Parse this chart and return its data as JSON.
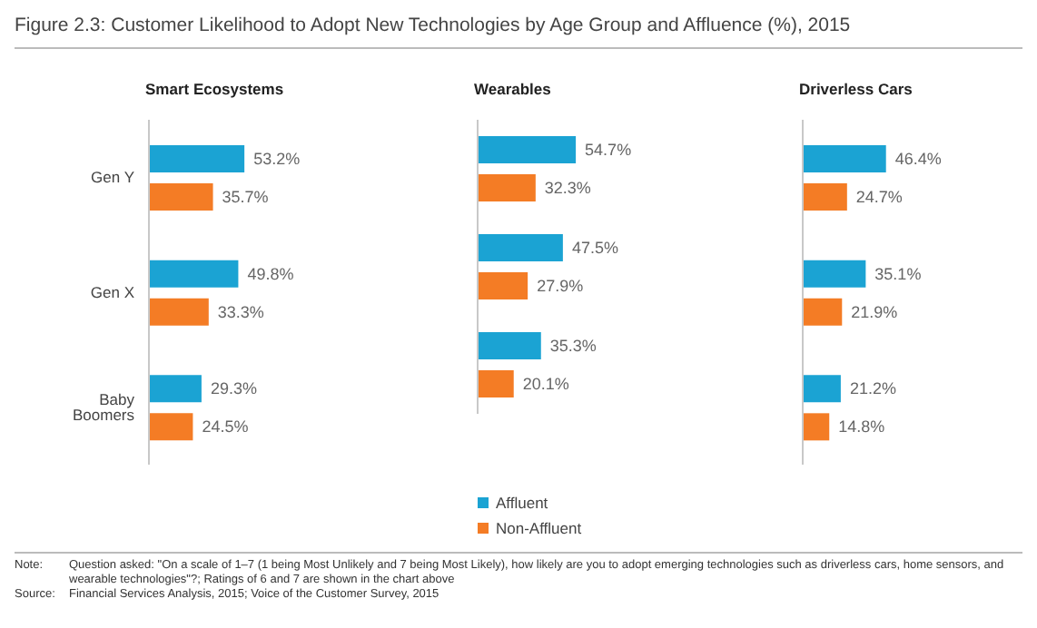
{
  "chart_data": [
    {
      "type": "bar",
      "orientation": "horizontal",
      "title": "Figure 2.3: Customer Likelihood to Adopt New Technologies by Age Group and Affluence (%), 2015",
      "subtitle": "Smart Ecosystems",
      "categories": [
        "Gen Y",
        "Gen X",
        "Baby Boomers"
      ],
      "tick_labels": "y",
      "grid": false,
      "legend": false,
      "series": [
        {
          "color": "#1ba3d3",
          "values": [
            53.2,
            49.8,
            29.3
          ],
          "value_labels": [
            "53.2%",
            "49.8%",
            "29.3%"
          ]
        },
        {
          "color": "#f47c25",
          "values": [
            35.7,
            33.3,
            24.5
          ],
          "value_labels": [
            "35.7%",
            "33.3%",
            "24.5%"
          ]
        }
      ],
      "annotations": [
        "Note:\tQuestion asked: \"On a scale of 1–7 (1 being Most Unlikely and 7 being Most Likely), how likely are you to adopt emerging technologies such as driverless cars, home sensors, and wearable technologies\"?; Ratings of 6 and 7 are shown in the chart above",
        "Source:\tFinancial Services Analysis, 2015; Voice of the Customer Survey, 2015"
      ]
    },
    {
      "type": "bar",
      "orientation": "horizontal",
      "subtitle": "Wearables",
      "categories": [
        null,
        null,
        null
      ],
      "tick_labels": false,
      "grid": false,
      "legend": "bottom",
      "series": [
        {
          "name": "Affluent",
          "color": "#1ba3d3",
          "values": [
            54.7,
            47.5,
            35.3
          ],
          "value_labels": [
            "54.7%",
            "47.5%",
            "35.3%"
          ]
        },
        {
          "name": "Non-Affluent",
          "color": "#f47c25",
          "values": [
            32.3,
            27.9,
            20.1
          ],
          "value_labels": [
            "32.3%",
            "27.9%",
            "20.1%"
          ]
        }
      ]
    },
    {
      "type": "bar",
      "orientation": "horizontal",
      "subtitle": "Driverless Cars",
      "categories": [
        null,
        null,
        null
      ],
      "tick_labels": false,
      "grid": false,
      "legend": false,
      "series": [
        {
          "color": "#1ba3d3",
          "values": [
            46.4,
            35.1,
            21.2
          ],
          "value_labels": [
            "46.4%",
            "35.1%",
            "21.2%"
          ]
        },
        {
          "color": "#f47c25",
          "values": [
            24.7,
            21.9,
            14.8
          ],
          "value_labels": [
            "24.7%",
            "21.9%",
            "14.8%"
          ]
        }
      ]
    }
  ]
}
